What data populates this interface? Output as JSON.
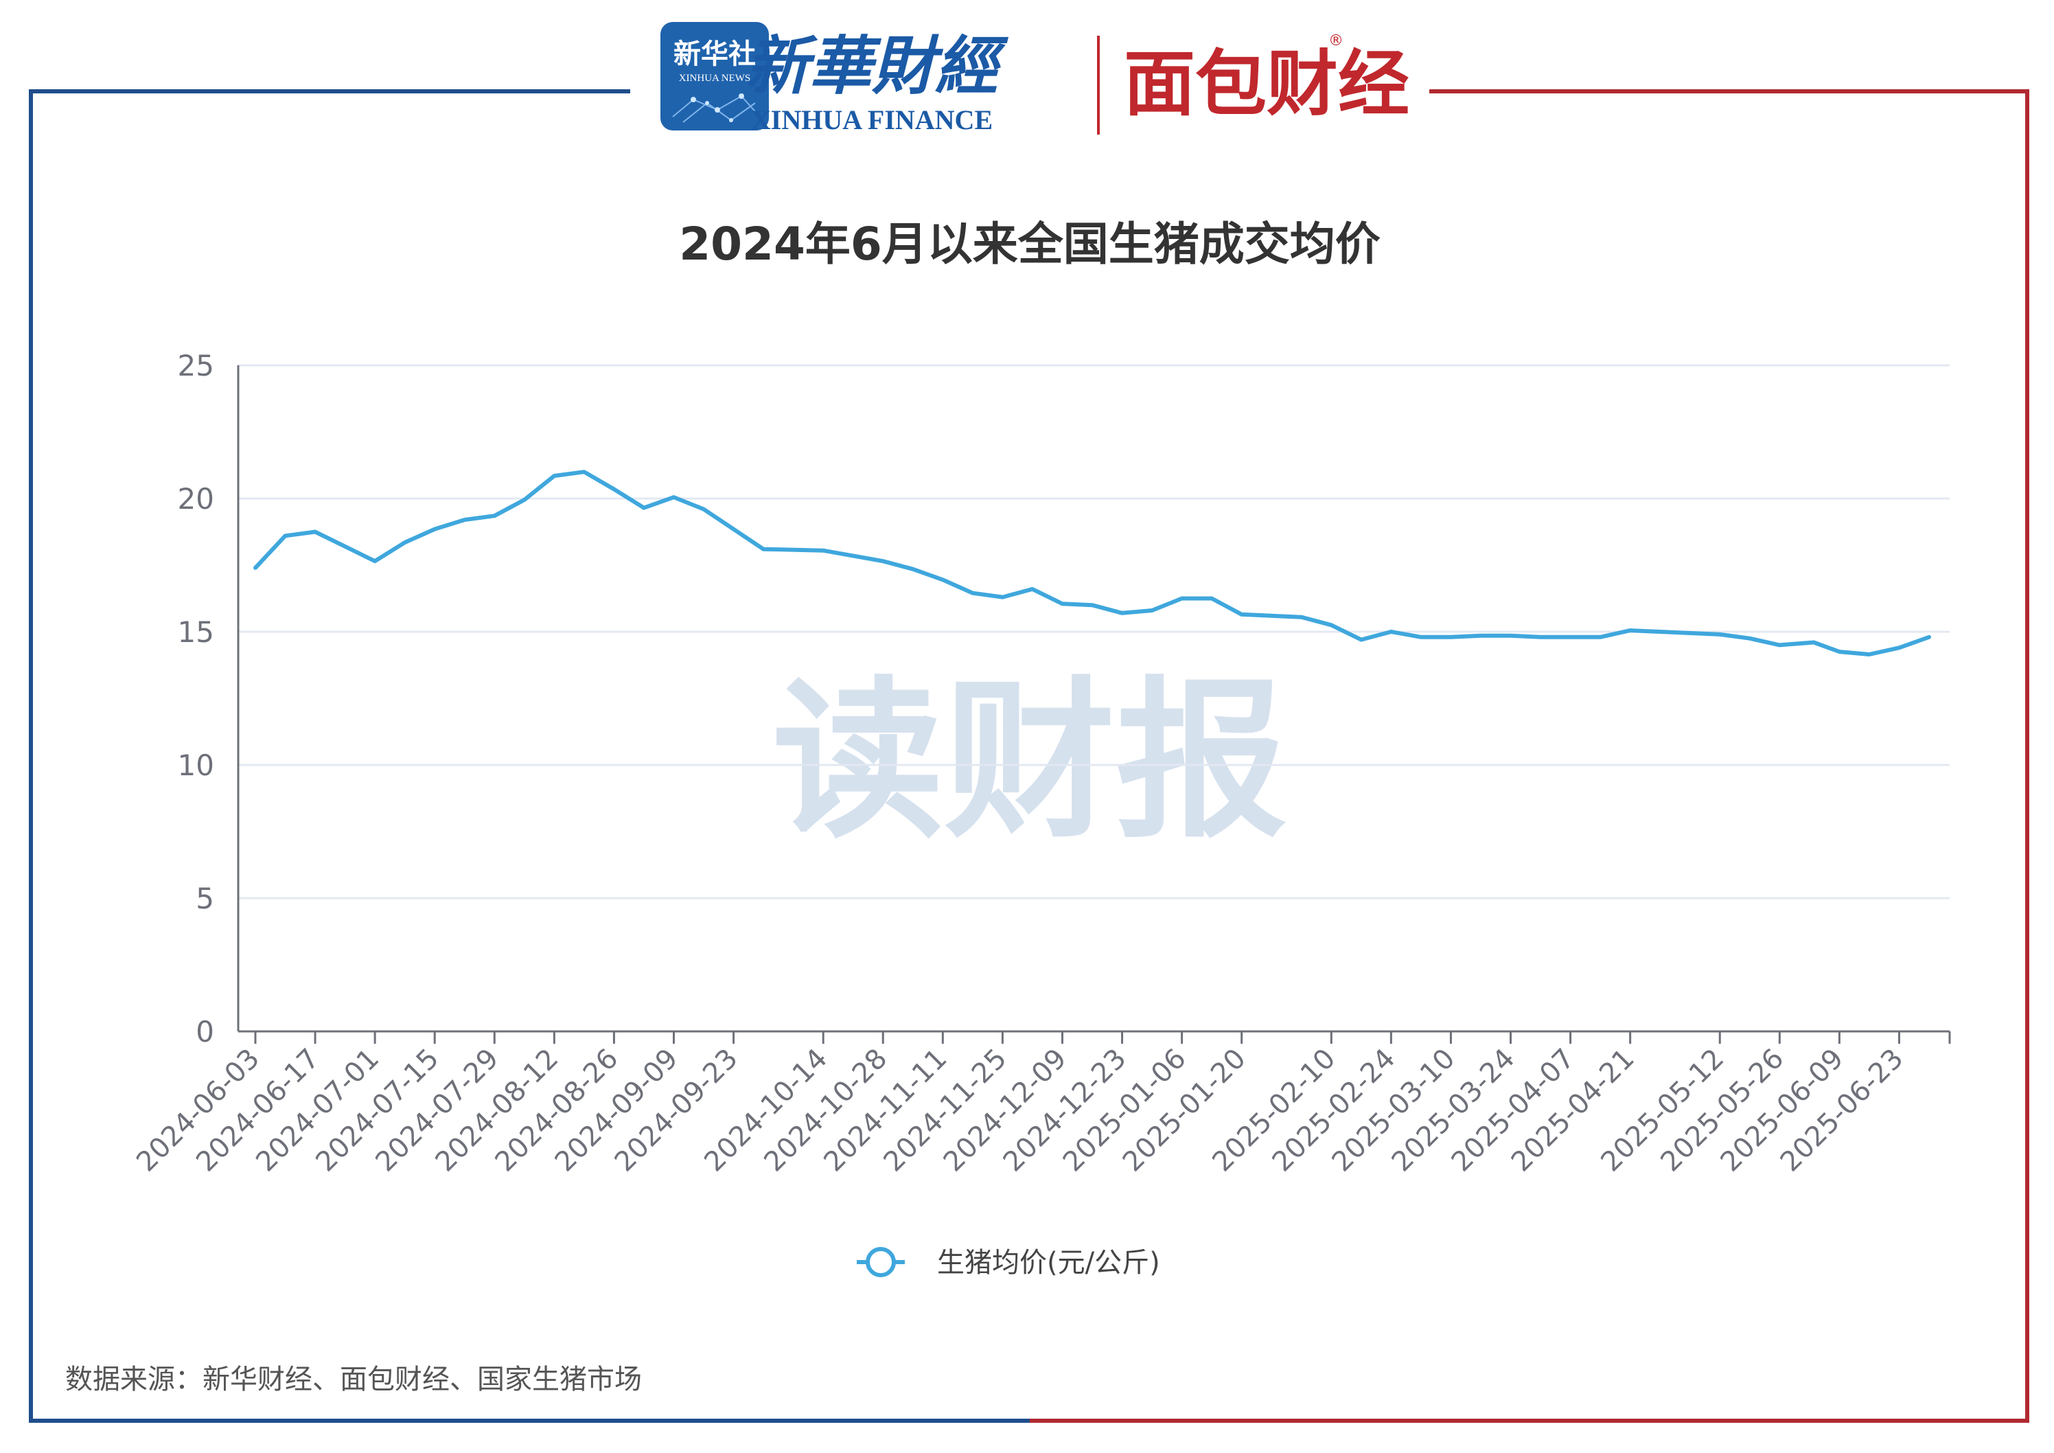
{
  "header": {
    "xinhua_news_badge": {
      "cn": "新华社",
      "en": "XINHUA NEWS"
    },
    "xinhua_finance": {
      "cn": "新華財經",
      "en": "XINHUA FINANCE"
    },
    "mianbao_finance": {
      "cn": "面包财经",
      "registered": "®"
    }
  },
  "colors": {
    "frame_left": "#1f4e8c",
    "frame_right": "#b02a30",
    "line": "#3fa7dd",
    "grid": "#e3e8f2",
    "axis": "#6e7079",
    "tick_text": "#6e7079",
    "title": "#333333",
    "watermark": "#cfdcec",
    "badge_bg": "#1f63ad",
    "xinhua_finance_blue": "#1b5aa6",
    "mianbao_red": "#c0282d"
  },
  "watermark": "读财报",
  "source_note": "数据来源：新华财经、面包财经、国家生猪市场",
  "chart_data": {
    "type": "line",
    "title": "2024年6月以来全国生猪成交均价",
    "xlabel": "",
    "ylabel": "",
    "ylim": [
      0,
      25
    ],
    "yticks": [
      0,
      5,
      10,
      15,
      20,
      25
    ],
    "grid": true,
    "legend_position": "bottom",
    "x": [
      "2024-06-03",
      "2024-06-10",
      "2024-06-17",
      "2024-06-24",
      "2024-07-01",
      "2024-07-08",
      "2024-07-15",
      "2024-07-22",
      "2024-07-29",
      "2024-08-05",
      "2024-08-12",
      "2024-08-19",
      "2024-08-26",
      "2024-09-02",
      "2024-09-09",
      "2024-09-16",
      "2024-09-23",
      "2024-09-30",
      "2024-10-14",
      "2024-10-21",
      "2024-10-28",
      "2024-11-04",
      "2024-11-11",
      "2024-11-18",
      "2024-11-25",
      "2024-12-02",
      "2024-12-09",
      "2024-12-16",
      "2024-12-23",
      "2024-12-30",
      "2025-01-06",
      "2025-01-13",
      "2025-01-20",
      "2025-02-03",
      "2025-02-10",
      "2025-02-17",
      "2025-02-24",
      "2025-03-03",
      "2025-03-10",
      "2025-03-17",
      "2025-03-24",
      "2025-03-31",
      "2025-04-07",
      "2025-04-14",
      "2025-04-21",
      "2025-04-28",
      "2025-05-12",
      "2025-05-19",
      "2025-05-26",
      "2025-06-03",
      "2025-06-09",
      "2025-06-16",
      "2025-06-23",
      "2025-06-30"
    ],
    "xtick_labels": [
      "2024-06-03",
      "2024-06-17",
      "2024-07-01",
      "2024-07-15",
      "2024-07-29",
      "2024-08-12",
      "2024-08-26",
      "2024-09-09",
      "2024-09-23",
      "2024-10-14",
      "2024-10-28",
      "2024-11-11",
      "2024-11-25",
      "2024-12-09",
      "2024-12-23",
      "2025-01-06",
      "2025-01-20",
      "2025-02-10",
      "2025-02-24",
      "2025-03-10",
      "2025-03-24",
      "2025-04-07",
      "2025-04-21",
      "2025-05-12",
      "2025-05-26",
      "2025-06-09",
      "2025-06-23"
    ],
    "series": [
      {
        "name": "生猪均价(元/公斤)",
        "values": [
          17.4,
          18.6,
          18.75,
          18.2,
          17.65,
          18.35,
          18.85,
          19.2,
          19.35,
          19.95,
          20.85,
          21.0,
          20.35,
          19.65,
          20.05,
          19.6,
          18.85,
          18.1,
          18.05,
          17.85,
          17.65,
          17.35,
          16.95,
          16.45,
          16.3,
          16.6,
          16.05,
          16.0,
          15.7,
          15.8,
          16.25,
          16.25,
          15.65,
          15.55,
          15.25,
          14.7,
          15.0,
          14.8,
          14.8,
          14.85,
          14.85,
          14.8,
          14.8,
          14.8,
          15.05,
          15.0,
          14.9,
          14.75,
          14.5,
          14.6,
          14.25,
          14.15,
          14.4,
          14.8
        ]
      }
    ]
  }
}
